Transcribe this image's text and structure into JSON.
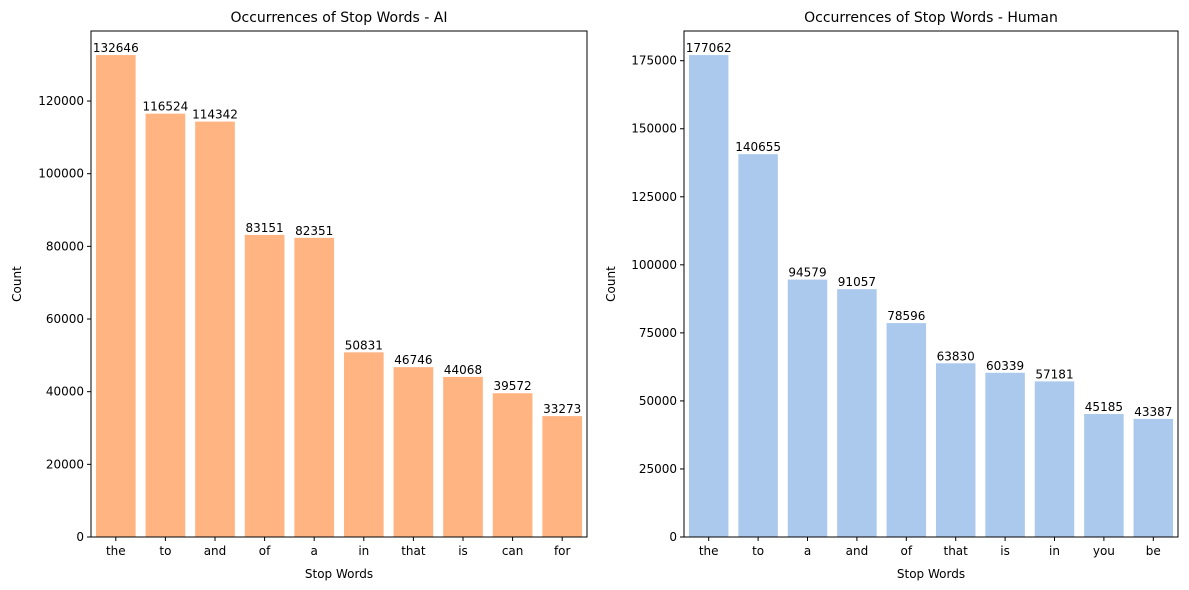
{
  "chart_data": [
    {
      "type": "bar",
      "title": "Occurrences of Stop Words - AI",
      "xlabel": "Stop Words",
      "ylabel": "Count",
      "categories": [
        "the",
        "to",
        "and",
        "of",
        "a",
        "in",
        "that",
        "is",
        "can",
        "for"
      ],
      "values": [
        132646,
        116524,
        114342,
        83151,
        82351,
        50831,
        46746,
        44068,
        39572,
        33273
      ],
      "ylim": [
        0,
        139278
      ],
      "yticks": [
        0,
        20000,
        40000,
        60000,
        80000,
        100000,
        120000
      ],
      "color": "#ffb482",
      "grid": false
    },
    {
      "type": "bar",
      "title": "Occurrences of Stop Words - Human",
      "xlabel": "Stop Words",
      "ylabel": "Count",
      "categories": [
        "the",
        "to",
        "a",
        "and",
        "of",
        "that",
        "is",
        "in",
        "you",
        "be"
      ],
      "values": [
        177062,
        140655,
        94579,
        91057,
        78596,
        63830,
        60339,
        57181,
        45185,
        43387
      ],
      "ylim": [
        0,
        185915
      ],
      "yticks": [
        0,
        25000,
        50000,
        75000,
        100000,
        125000,
        150000,
        175000
      ],
      "color": "#abc9ed",
      "grid": false
    }
  ]
}
